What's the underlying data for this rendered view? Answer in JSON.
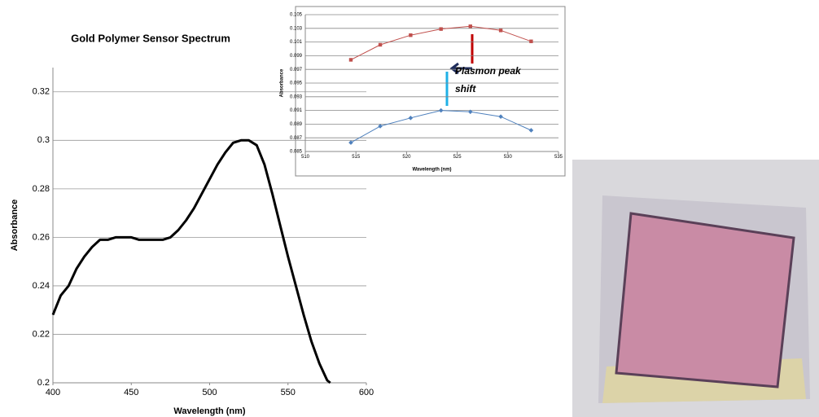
{
  "chart_data": [
    {
      "type": "line",
      "title": "Gold Polymer Sensor Spectrum",
      "x_label": "Wavelength (nm)",
      "y_label": "Absorbance",
      "x": [
        400,
        405,
        410,
        415,
        420,
        425,
        430,
        435,
        440,
        445,
        450,
        455,
        460,
        465,
        470,
        475,
        480,
        485,
        490,
        495,
        500,
        505,
        510,
        515,
        520,
        525,
        530,
        535,
        540,
        545,
        550,
        555,
        560,
        565,
        570,
        575,
        577
      ],
      "series": [
        {
          "color": "#000000",
          "values": [
            0.228,
            0.236,
            0.24,
            0.247,
            0.252,
            0.256,
            0.259,
            0.259,
            0.26,
            0.26,
            0.26,
            0.259,
            0.259,
            0.259,
            0.259,
            0.26,
            0.263,
            0.267,
            0.272,
            0.278,
            0.284,
            0.29,
            0.295,
            0.299,
            0.3,
            0.3,
            0.298,
            0.29,
            0.278,
            0.265,
            0.252,
            0.24,
            0.228,
            0.217,
            0.208,
            0.201,
            0.2
          ]
        }
      ],
      "xlim": [
        400,
        600
      ],
      "xticks": [
        400,
        450,
        500,
        550,
        600
      ],
      "ylim": [
        0.2,
        0.33
      ],
      "yticks": [
        0.2,
        0.22,
        0.24,
        0.26,
        0.28,
        0.3,
        0.32
      ],
      "grid": true
    },
    {
      "type": "line",
      "x_label": "Wavelength (nm)",
      "y_label": "Absorbance",
      "annotation": [
        "Plasmon peak",
        "shift"
      ],
      "x": [
        514.5,
        517.4,
        520.4,
        523.4,
        526.3,
        529.3,
        532.3
      ],
      "series": [
        {
          "color": "#c0504d",
          "marker": "square",
          "values": [
            0.0984,
            0.1006,
            0.102,
            0.1029,
            0.1033,
            0.1027,
            0.1011
          ]
        },
        {
          "color": "#4f81bd",
          "marker": "diamond",
          "values": [
            0.0863,
            0.0887,
            0.0899,
            0.091,
            0.0908,
            0.0901,
            0.0881
          ]
        }
      ],
      "xlim": [
        510,
        535
      ],
      "xticks": [
        510,
        515,
        520,
        525,
        530,
        535
      ],
      "ylim": [
        0.085,
        0.105
      ],
      "yticks": [
        0.085,
        0.087,
        0.089,
        0.091,
        0.093,
        0.095,
        0.097,
        0.099,
        0.101,
        0.103,
        0.105
      ],
      "grid": true
    }
  ]
}
